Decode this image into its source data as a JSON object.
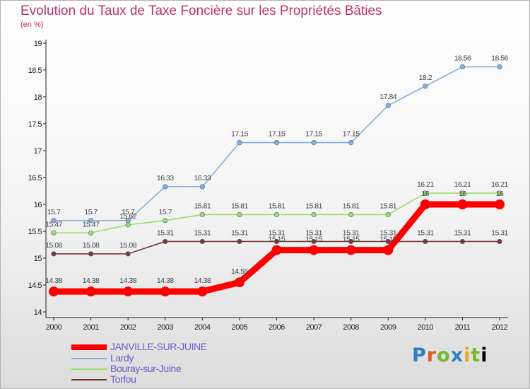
{
  "chart_data": {
    "type": "line",
    "title": "Evolution du Taux de Taxe Foncière sur les Propriétés Bâties",
    "ylabel": "(en %)",
    "xlabel": "",
    "ylim": [
      14,
      19
    ],
    "yticks": [
      "14",
      "14.5",
      "15",
      "15.5",
      "16",
      "16.5",
      "17",
      "17.5",
      "18",
      "18.5",
      "19"
    ],
    "categories": [
      "2000",
      "2001",
      "2002",
      "2003",
      "2004",
      "2005",
      "2006",
      "2007",
      "2008",
      "2009",
      "2010",
      "2011",
      "2012"
    ],
    "grid": false,
    "legend_position": "bottom-left",
    "series": [
      {
        "name": "Lardy",
        "color": "#86aed8",
        "values": [
          15.7,
          15.7,
          15.7,
          16.33,
          16.33,
          17.15,
          17.15,
          17.15,
          17.15,
          17.84,
          18.2,
          18.56,
          18.56
        ],
        "labels": [
          "15.7",
          "15.7",
          "15.7",
          "16.33",
          "16.33",
          "17.15",
          "17.15",
          "17.15",
          "17.15",
          "17.84",
          "18.2",
          "18.56",
          "18.56"
        ]
      },
      {
        "name": "Bouray-sur-Juine",
        "color": "#99dd66",
        "values": [
          15.47,
          15.47,
          15.62,
          15.7,
          15.81,
          15.81,
          15.81,
          15.81,
          15.81,
          15.81,
          16.21,
          16.21,
          16.21
        ],
        "labels": [
          "15.47",
          "15.47",
          "15.62",
          "15.7",
          "15.81",
          "15.81",
          "15.81",
          "15.81",
          "15.81",
          "15.81",
          "16.21",
          "16.21",
          "16.21"
        ]
      },
      {
        "name": "Torfou",
        "color": "#7a3838",
        "values": [
          15.08,
          15.08,
          15.08,
          15.31,
          15.31,
          15.31,
          15.31,
          15.31,
          15.31,
          15.31,
          15.31,
          15.31,
          15.31
        ],
        "labels": [
          "15.08",
          "15.08",
          "15.08",
          "15.31",
          "15.31",
          "15.31",
          "15.31",
          "15.31",
          "15.31",
          "15.31",
          "15.31",
          "15.31",
          "15.31"
        ]
      },
      {
        "name": "JANVILLE-SUR-JUINE",
        "color": "#ff0000",
        "values": [
          14.38,
          14.38,
          14.38,
          14.38,
          14.38,
          14.55,
          15.15,
          15.15,
          15.15,
          15.15,
          16,
          16,
          16
        ],
        "labels": [
          "14.38",
          "14.38",
          "14.38",
          "14.38",
          "14.38",
          "14.55",
          "15.15",
          "15.15",
          "15.15",
          "15.15",
          "16",
          "16",
          "16"
        ]
      }
    ],
    "legend": [
      {
        "name": "JANVILLE-SUR-JUINE",
        "color": "#ff0000"
      },
      {
        "name": "Lardy",
        "color": "#86aed8"
      },
      {
        "name": "Bouray-sur-Juine",
        "color": "#99dd66"
      },
      {
        "name": "Torfou",
        "color": "#7a3838"
      }
    ]
  },
  "logo": {
    "letters": [
      "P",
      "r",
      "o",
      "x",
      "i",
      "t",
      "i"
    ]
  }
}
